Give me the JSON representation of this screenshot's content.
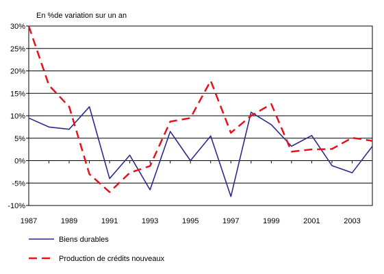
{
  "chart_data": {
    "type": "line",
    "unit_label": "En %de variation sur un an",
    "x": [
      1987,
      1988,
      1989,
      1990,
      1991,
      1992,
      1993,
      1994,
      1995,
      1996,
      1997,
      1998,
      1999,
      2000,
      2001,
      2002,
      2003,
      2004
    ],
    "x_tick_labels": [
      "1987",
      "1989",
      "1991",
      "1993",
      "1995",
      "1997",
      "1999",
      "2001",
      "2003"
    ],
    "y_ticks": [
      -10,
      -5,
      0,
      5,
      10,
      15,
      20,
      25,
      30
    ],
    "y_tick_labels": [
      "-10%",
      "-5%",
      "0%",
      "5%",
      "10%",
      "15%",
      "20%",
      "25%",
      "30%"
    ],
    "ylim": [
      -10,
      30
    ],
    "grid": "horizontal",
    "legend_position": "bottom-left",
    "series": [
      {
        "name": "Biens durables",
        "color": "#2a2a8c",
        "style": "solid",
        "values": [
          9.5,
          7.5,
          7.0,
          12.0,
          -4.0,
          1.2,
          -6.5,
          6.5,
          0.0,
          5.5,
          -8.0,
          10.8,
          8.0,
          3.2,
          5.6,
          -1.1,
          -2.7,
          3.2
        ]
      },
      {
        "name": "Production de crédits nouveaux",
        "color": "#e8101a",
        "style": "dashed",
        "values": [
          30.0,
          16.8,
          12.0,
          -3.0,
          -7.0,
          -2.7,
          -1.2,
          8.7,
          9.5,
          17.8,
          6.2,
          10.0,
          12.6,
          2.0,
          2.5,
          2.6,
          5.1,
          4.4
        ]
      }
    ]
  }
}
